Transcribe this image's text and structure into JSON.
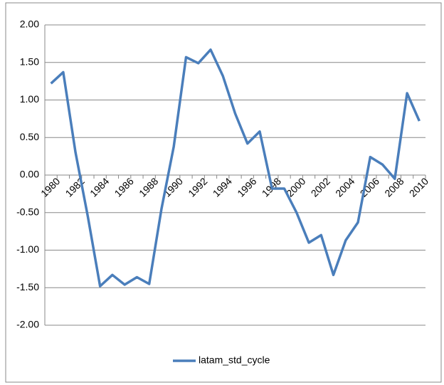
{
  "chart_data": {
    "type": "line",
    "categories": [
      "1980",
      null,
      "1982",
      null,
      "1984",
      null,
      "1986",
      null,
      "1988",
      null,
      "1990",
      null,
      "1992",
      null,
      "1994",
      null,
      "1996",
      null,
      "1998",
      null,
      "2000",
      null,
      "2002",
      null,
      "2004",
      null,
      "2006",
      null,
      "2008",
      null,
      "2010"
    ],
    "series": [
      {
        "name": "latam_std_cycle",
        "color": "#4a7ebb",
        "values": [
          1.22,
          1.37,
          0.3,
          -0.55,
          -1.48,
          -1.33,
          -1.46,
          -1.36,
          -1.45,
          -0.45,
          0.38,
          1.57,
          1.49,
          1.67,
          1.32,
          0.82,
          0.42,
          0.58,
          -0.18,
          -0.18,
          -0.5,
          -0.9,
          -0.8,
          -1.33,
          -0.87,
          -0.63,
          0.24,
          0.14,
          -0.05,
          1.09,
          0.72
        ]
      }
    ],
    "ylim": [
      -2,
      2
    ],
    "yticks": [
      {
        "value": -2,
        "label": "-2.00"
      },
      {
        "value": -1.5,
        "label": "-1.50"
      },
      {
        "value": -1,
        "label": "-1.00"
      },
      {
        "value": -0.5,
        "label": "-0.50"
      },
      {
        "value": 0,
        "label": "0.00"
      },
      {
        "value": 0.5,
        "label": "0.50"
      },
      {
        "value": 1,
        "label": "1.00"
      },
      {
        "value": 1.5,
        "label": "1.50"
      },
      {
        "value": 2,
        "label": "2.00"
      }
    ],
    "grid": true,
    "legend": "bottom"
  }
}
